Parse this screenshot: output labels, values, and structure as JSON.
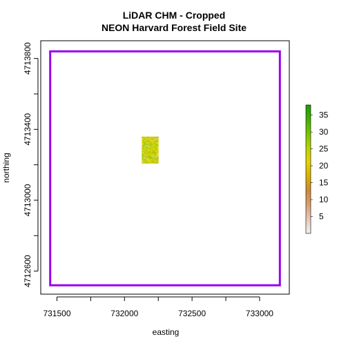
{
  "chart_data": {
    "type": "raster",
    "title": "LiDAR CHM - Cropped",
    "subtitle": "NEON Harvard Forest Field Site",
    "xlabel": "easting",
    "ylabel": "northing",
    "xlim": [
      731380,
      733220
    ],
    "ylim": [
      4712470,
      4713900
    ],
    "xticks": [
      731500,
      732000,
      732500,
      733000
    ],
    "yticks": [
      4712600,
      4713000,
      4713400,
      4713800
    ],
    "raster_extent": {
      "xmin": 732128,
      "xmax": 732251,
      "ymin": 4713208,
      "ymax": 4713359
    },
    "crop_box": {
      "xmin": 731450,
      "xmax": 733150,
      "ymin": 4712520,
      "ymax": 4713840,
      "color": "#9900ee"
    },
    "legend": {
      "range": [
        0,
        38
      ],
      "ticks": [
        5,
        10,
        15,
        20,
        25,
        30,
        35
      ],
      "position": "right",
      "colors": [
        "#f2f2f2",
        "#e8c8b8",
        "#d9a070",
        "#cc8a3a",
        "#d9b000",
        "#e6d200",
        "#b8d400",
        "#7cc400",
        "#42b000",
        "#1f9a00"
      ]
    }
  }
}
